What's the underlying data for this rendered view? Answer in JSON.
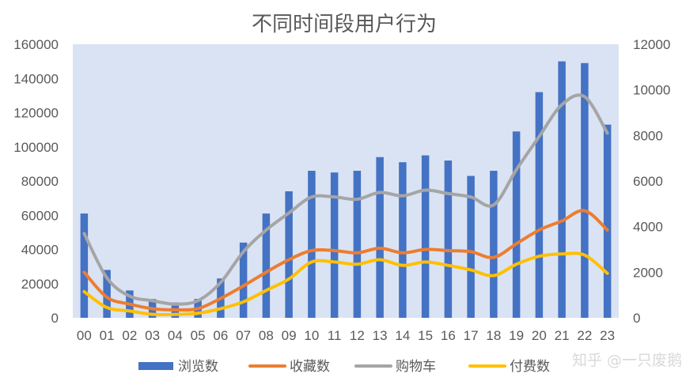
{
  "watermark": "知乎 @一只废鹅",
  "chart_data": {
    "type": "bar",
    "title": "不同时间段用户行为",
    "categories": [
      "00",
      "01",
      "02",
      "03",
      "04",
      "05",
      "06",
      "07",
      "08",
      "09",
      "10",
      "11",
      "12",
      "13",
      "14",
      "15",
      "16",
      "17",
      "18",
      "19",
      "20",
      "21",
      "22",
      "23"
    ],
    "y_left": {
      "range": [
        0,
        160000
      ],
      "ticks": [
        "0",
        "20000",
        "40000",
        "60000",
        "80000",
        "100000",
        "120000",
        "140000",
        "160000"
      ]
    },
    "y_right": {
      "range": [
        0,
        12000
      ],
      "ticks": [
        "0",
        "2000",
        "4000",
        "6000",
        "8000",
        "10000",
        "12000"
      ]
    },
    "grid": false,
    "legend_position": "bottom",
    "series": [
      {
        "name": "浏览数",
        "type": "bar",
        "axis": "left",
        "color": "#4472C4",
        "values": [
          61000,
          28000,
          16000,
          11000,
          9000,
          11000,
          23000,
          44000,
          61000,
          74000,
          86000,
          85000,
          86000,
          94000,
          91000,
          95000,
          92000,
          83000,
          86000,
          109000,
          132000,
          150000,
          149000,
          113000
        ]
      },
      {
        "name": "收藏数",
        "type": "line",
        "axis": "right",
        "color": "#ED7D31",
        "values": [
          2000,
          900,
          600,
          400,
          350,
          400,
          850,
          1400,
          2000,
          2550,
          2950,
          2950,
          2850,
          3050,
          2850,
          3000,
          2950,
          2900,
          2650,
          3250,
          3850,
          4250,
          4700,
          3850
        ]
      },
      {
        "name": "购物车",
        "type": "line",
        "axis": "right",
        "color": "#A5A5A5",
        "values": [
          3700,
          1750,
          950,
          750,
          600,
          750,
          1550,
          2900,
          3850,
          4600,
          5300,
          5300,
          5200,
          5500,
          5350,
          5600,
          5450,
          5300,
          4950,
          6500,
          7950,
          9350,
          9700,
          8100
        ]
      },
      {
        "name": "付费数",
        "type": "line",
        "axis": "right",
        "color": "#FFC000",
        "values": [
          1150,
          450,
          300,
          150,
          150,
          200,
          400,
          700,
          1200,
          1700,
          2450,
          2450,
          2350,
          2550,
          2300,
          2450,
          2300,
          2100,
          1850,
          2350,
          2700,
          2800,
          2750,
          1950
        ]
      }
    ]
  }
}
